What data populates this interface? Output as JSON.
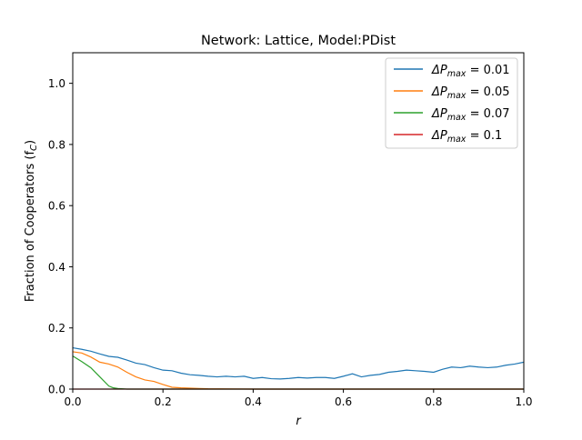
{
  "chart_data": {
    "type": "line",
    "title": "Network: Lattice, Model:PDist",
    "xlabel": "r",
    "ylabel": "Fraction of Cooperators (f",
    "ylabel_sub": "C",
    "ylabel_close": ")",
    "xlim": [
      0.0,
      1.0
    ],
    "ylim": [
      0.0,
      1.1
    ],
    "x_ticks": [
      0.0,
      0.2,
      0.4,
      0.6,
      0.8,
      1.0
    ],
    "x_tick_labels": [
      "0.0",
      "0.2",
      "0.4",
      "0.6",
      "0.8",
      "1.0"
    ],
    "y_ticks": [
      0.0,
      0.2,
      0.4,
      0.6,
      0.8,
      1.0
    ],
    "y_tick_labels": [
      "0.0",
      "0.2",
      "0.4",
      "0.6",
      "0.8",
      "1.0"
    ],
    "grid": false,
    "legend_position": "top-right",
    "series": [
      {
        "name": "ΔP_max = 0.01",
        "color": "#1f77b4",
        "x": [
          0.0,
          0.02,
          0.04,
          0.06,
          0.08,
          0.1,
          0.12,
          0.14,
          0.16,
          0.18,
          0.2,
          0.22,
          0.24,
          0.26,
          0.28,
          0.3,
          0.32,
          0.34,
          0.36,
          0.38,
          0.4,
          0.42,
          0.44,
          0.46,
          0.48,
          0.5,
          0.52,
          0.54,
          0.56,
          0.58,
          0.6,
          0.62,
          0.64,
          0.66,
          0.68,
          0.7,
          0.72,
          0.74,
          0.76,
          0.78,
          0.8,
          0.82,
          0.84,
          0.86,
          0.88,
          0.9,
          0.92,
          0.94,
          0.96,
          0.98,
          1.0
        ],
        "y": [
          0.135,
          0.13,
          0.124,
          0.115,
          0.107,
          0.104,
          0.095,
          0.085,
          0.08,
          0.07,
          0.062,
          0.06,
          0.052,
          0.047,
          0.045,
          0.042,
          0.04,
          0.042,
          0.04,
          0.042,
          0.035,
          0.038,
          0.034,
          0.033,
          0.035,
          0.038,
          0.036,
          0.038,
          0.038,
          0.035,
          0.042,
          0.05,
          0.04,
          0.045,
          0.048,
          0.055,
          0.058,
          0.062,
          0.06,
          0.058,
          0.055,
          0.065,
          0.072,
          0.07,
          0.075,
          0.072,
          0.07,
          0.072,
          0.078,
          0.082,
          0.088
        ]
      },
      {
        "name": "ΔP_max = 0.05",
        "color": "#ff7f0e",
        "x": [
          0.0,
          0.02,
          0.04,
          0.06,
          0.08,
          0.1,
          0.12,
          0.14,
          0.16,
          0.18,
          0.2,
          0.22,
          0.24,
          0.26,
          0.28,
          0.3,
          0.4,
          0.6,
          0.8,
          1.0
        ],
        "y": [
          0.122,
          0.118,
          0.105,
          0.088,
          0.082,
          0.072,
          0.055,
          0.04,
          0.03,
          0.025,
          0.015,
          0.006,
          0.004,
          0.003,
          0.002,
          0.001,
          0.0,
          0.0,
          0.0,
          0.0
        ]
      },
      {
        "name": "ΔP_max = 0.07",
        "color": "#2ca02c",
        "x": [
          0.0,
          0.02,
          0.04,
          0.06,
          0.08,
          0.09,
          0.1,
          0.12,
          0.2,
          0.4,
          0.6,
          0.8,
          1.0
        ],
        "y": [
          0.108,
          0.09,
          0.07,
          0.04,
          0.01,
          0.004,
          0.002,
          0.0,
          0.0,
          0.0,
          0.0,
          0.0,
          0.0
        ]
      },
      {
        "name": "ΔP_max = 0.1",
        "color": "#d62728",
        "x": [
          0.0,
          0.2,
          0.4,
          0.6,
          0.8,
          1.0
        ],
        "y": [
          0.0,
          0.0,
          0.0,
          0.0,
          0.0,
          0.0
        ]
      }
    ],
    "legend": [
      {
        "prefix": "ΔP",
        "sub": "max",
        "suffix": " = 0.01"
      },
      {
        "prefix": "ΔP",
        "sub": "max",
        "suffix": " = 0.05"
      },
      {
        "prefix": "ΔP",
        "sub": "max",
        "suffix": " = 0.07"
      },
      {
        "prefix": "ΔP",
        "sub": "max",
        "suffix": " = 0.1"
      }
    ]
  }
}
